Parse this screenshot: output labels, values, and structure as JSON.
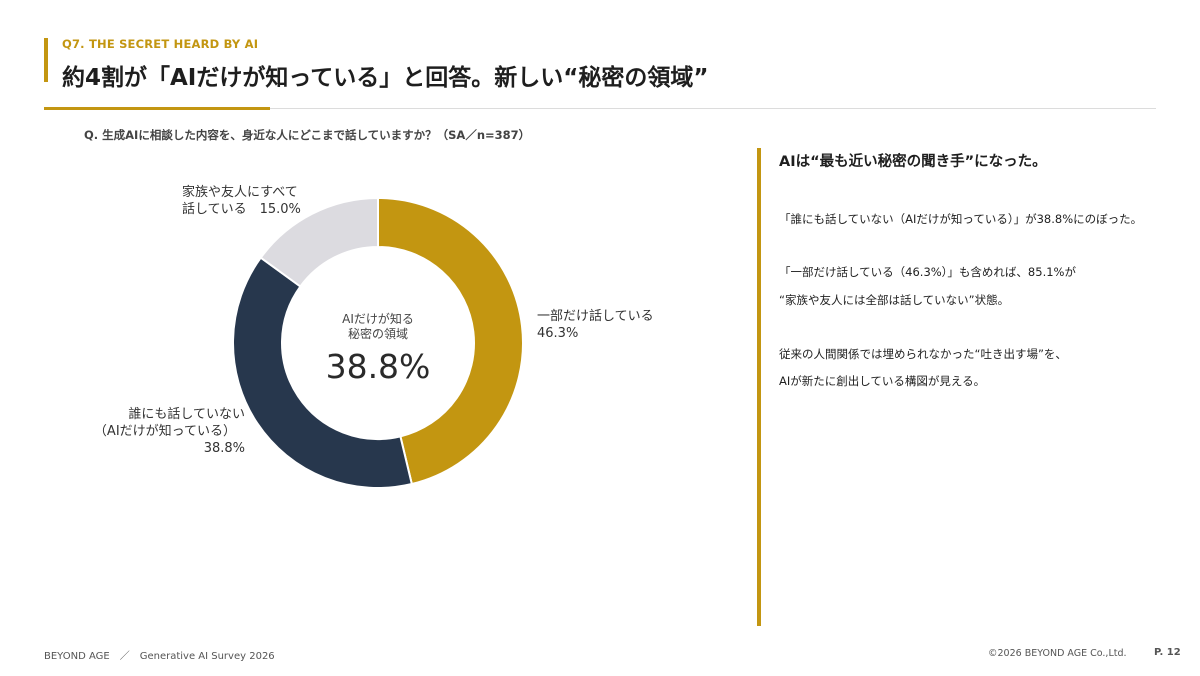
{
  "header": {
    "kicker": "Q7. THE SECRET HEARD BY AI",
    "title": "約4割が「AIだけが知っている」と回答。新しい“秘密の領域”"
  },
  "question": "Q. 生成AIに相談した内容を、身近な人にどこまで話していますか？（SA／n=387）",
  "chart_data": {
    "type": "pie",
    "donut": true,
    "slices": [
      {
        "name": "一部だけ話している",
        "value": 46.3,
        "color": "#c39611",
        "label_lines": [
          "一部だけ話している",
          "46.3%"
        ]
      },
      {
        "name": "誰にも話していない（AIだけが知っている）",
        "value": 38.8,
        "color": "#27374d",
        "label_lines": [
          "誰にも話していない",
          "（AIだけが知っている）",
          "38.8%"
        ]
      },
      {
        "name": "家族や友人にすべて話している",
        "value": 15.0,
        "color": "#dcdbe0",
        "label_lines": [
          "家族や友人にすべて",
          "話している　15.0%"
        ]
      }
    ],
    "center_caption": [
      "AIだけが知る",
      "秘密の領域"
    ],
    "center_value": "38.8%"
  },
  "side": {
    "title": "AIは“最も近い秘密の聞き手”になった。",
    "p1": "「誰にも話していない（AIだけが知っている）」が38.8%にのぼった。",
    "p2_line1": "「一部だけ話している（46.3%）」も含めれば、85.1%が",
    "p2_line2": "“家族や友人には全部は話していない”状態。",
    "p3_line1": "従来の人間関係では埋められなかった“吐き出す場”を、",
    "p3_line2": "AIが新たに創出している構図が見える。"
  },
  "footer": {
    "left": "BEYOND AGE　／　Generative AI Survey 2026",
    "right": "©2026 BEYOND AGE Co.,Ltd.",
    "page": "P. 12"
  }
}
